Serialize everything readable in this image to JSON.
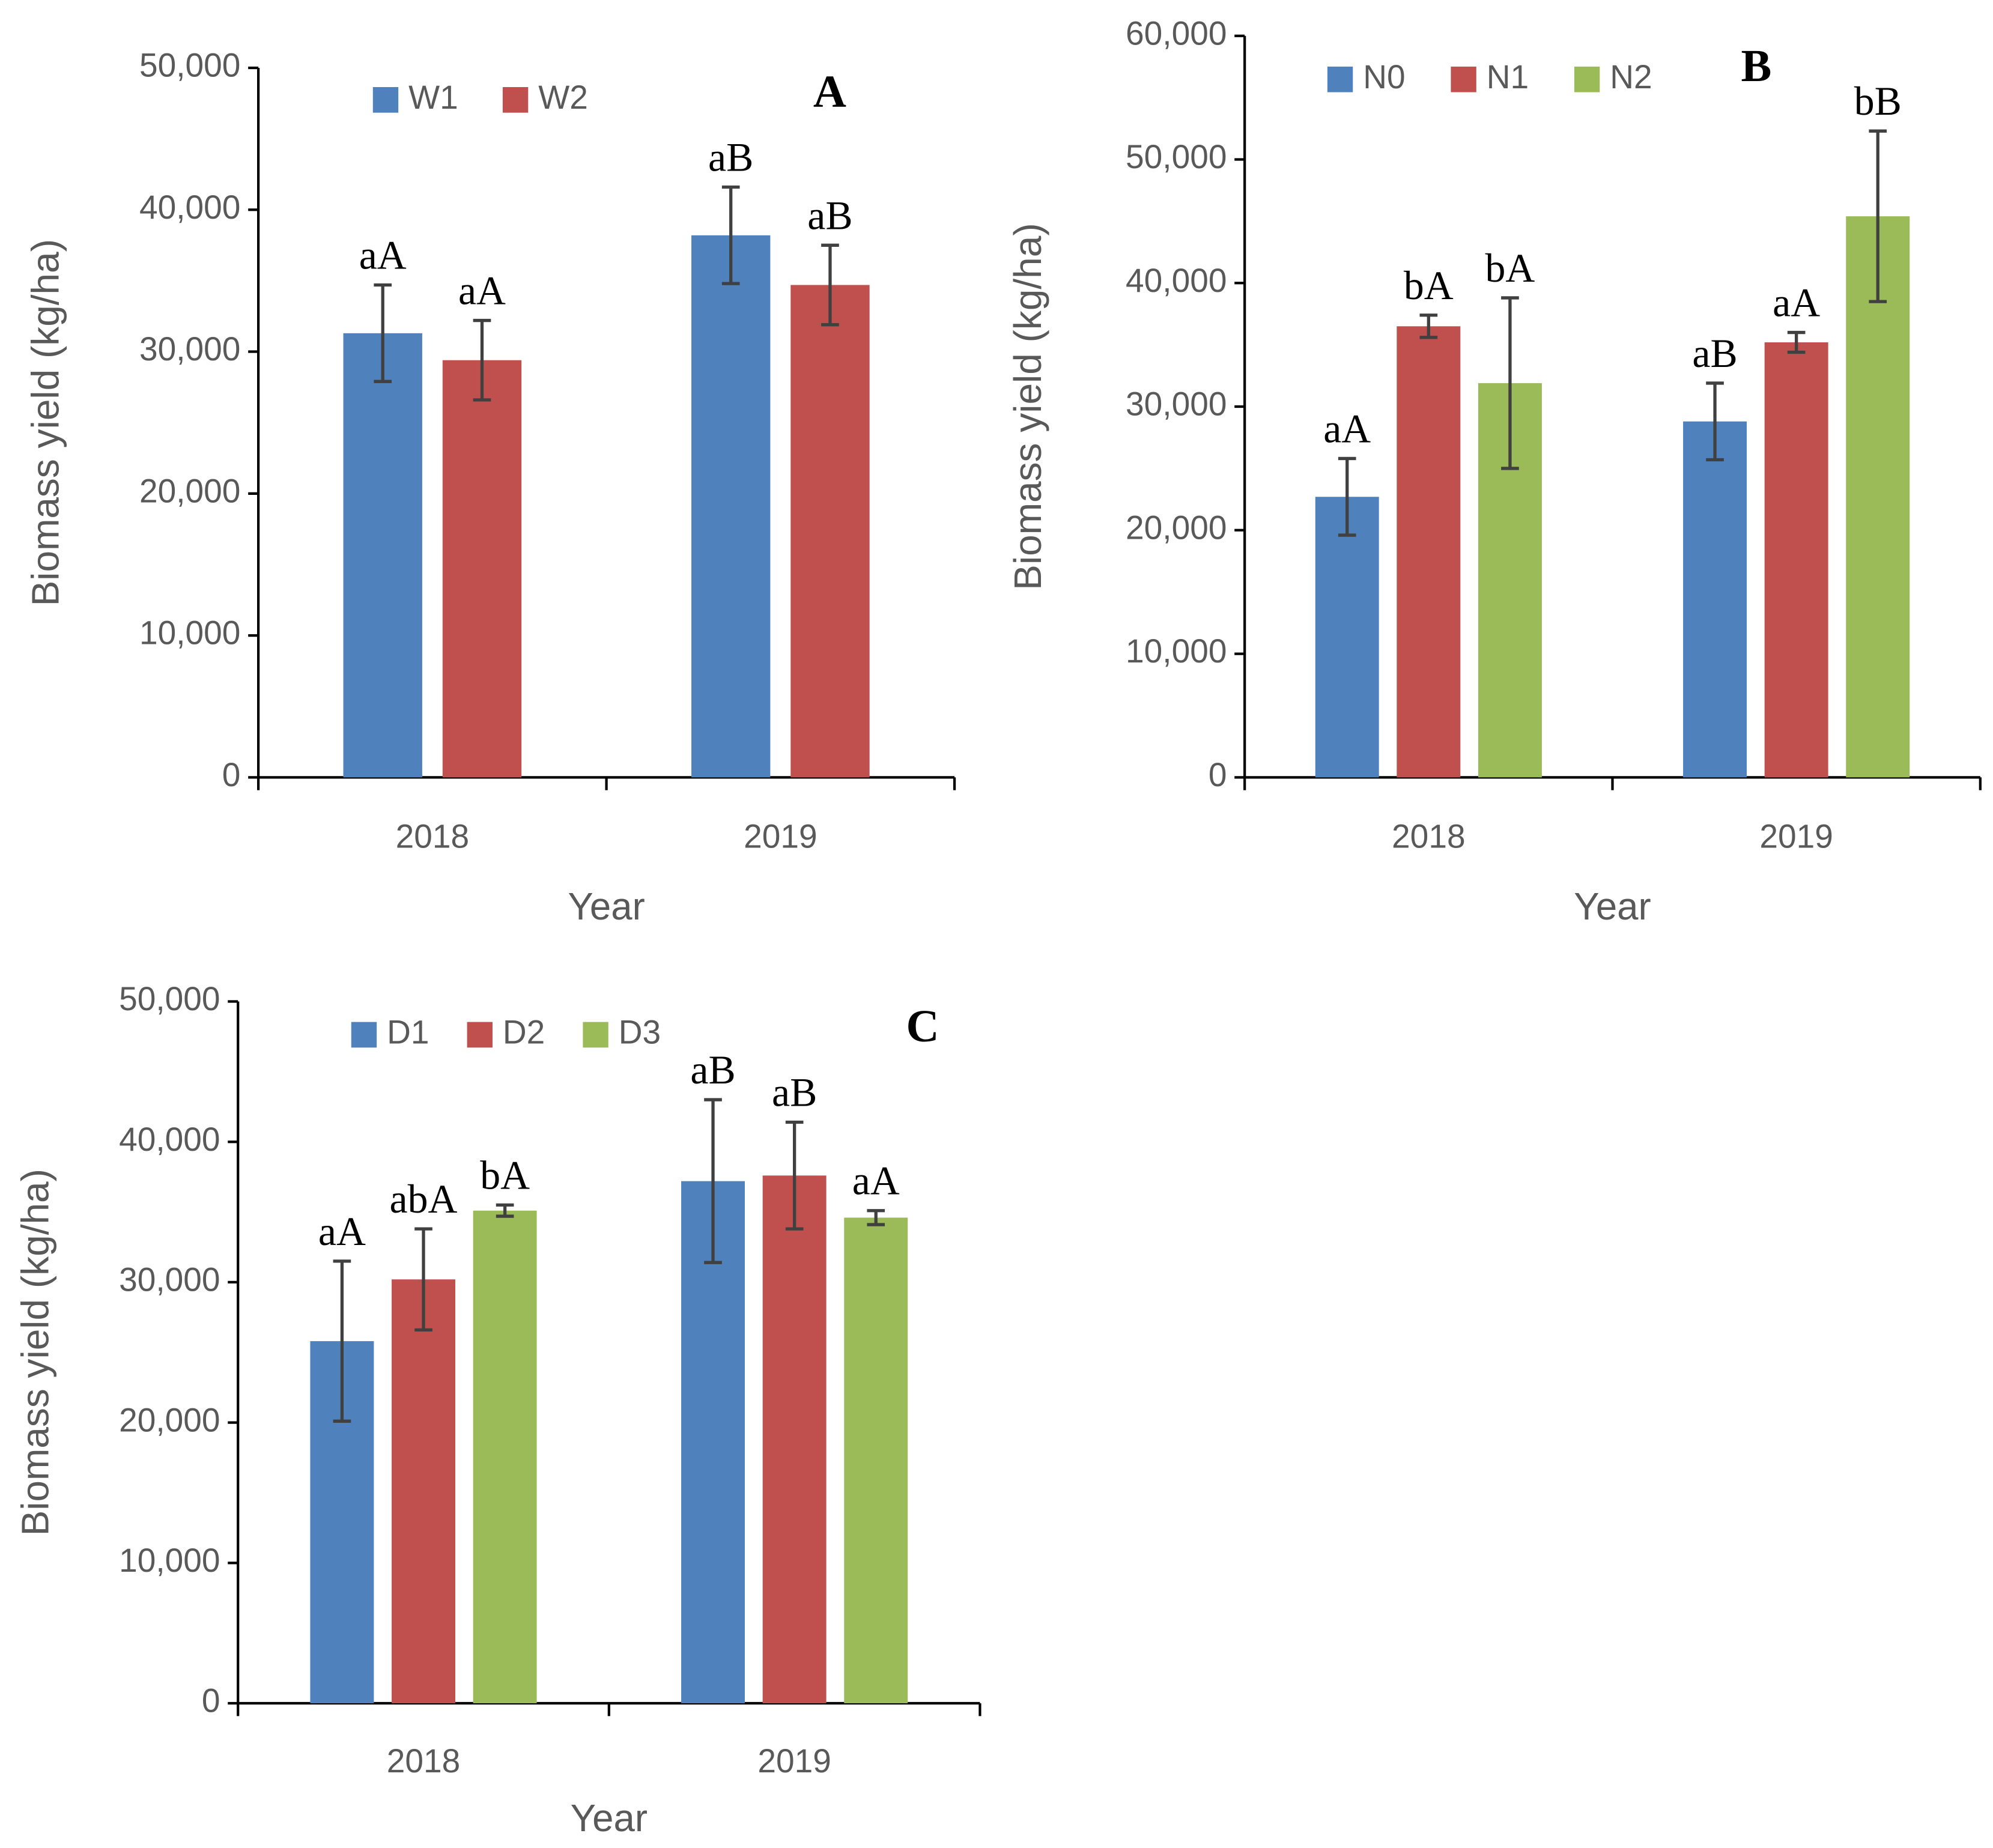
{
  "chart_data": [
    {
      "type": "bar",
      "title": "A",
      "x_label": "Year",
      "y_label": "Biomass yield (kg/ha)",
      "categories": [
        "2018",
        "2019"
      ],
      "series": [
        {
          "name": "W1",
          "color": "#4f81bd",
          "values": [
            31300,
            38200
          ],
          "errors": [
            3400,
            3400
          ],
          "annotations": [
            "aA",
            "aB"
          ]
        },
        {
          "name": "W2",
          "color": "#c0504d",
          "values": [
            29400,
            34700
          ],
          "errors": [
            2800,
            2800
          ],
          "annotations": [
            "aA",
            "aB"
          ]
        }
      ],
      "ylim": [
        0,
        50000
      ],
      "yticks": [
        0,
        {
          "value": 10000,
          "label": "10,000"
        },
        {
          "value": 20000,
          "label": "20,000"
        },
        {
          "value": 30000,
          "label": "30,000"
        },
        {
          "value": 40000,
          "label": "40,000"
        },
        {
          "value": 50000,
          "label": "50,000"
        }
      ]
    },
    {
      "type": "bar",
      "title": "B",
      "x_label": "Year",
      "y_label": "Biomass yield (kg/ha)",
      "categories": [
        "2018",
        "2019"
      ],
      "series": [
        {
          "name": "N0",
          "color": "#4f81bd",
          "values": [
            22700,
            28800
          ],
          "errors": [
            3100,
            3100
          ],
          "annotations": [
            "aA",
            "aB"
          ]
        },
        {
          "name": "N1",
          "color": "#c0504d",
          "values": [
            36500,
            35200
          ],
          "errors": [
            900,
            800
          ],
          "annotations": [
            "bA",
            "aA"
          ]
        },
        {
          "name": "N2",
          "color": "#9bbb59",
          "values": [
            31900,
            45400
          ],
          "errors": [
            6900,
            6900
          ],
          "annotations": [
            "bA",
            "bB"
          ]
        }
      ],
      "ylim": [
        0,
        60000
      ],
      "yticks": [
        0,
        {
          "value": 10000,
          "label": "10,000"
        },
        {
          "value": 20000,
          "label": "20,000"
        },
        {
          "value": 30000,
          "label": "30,000"
        },
        {
          "value": 40000,
          "label": "40,000"
        },
        {
          "value": 50000,
          "label": "50,000"
        },
        {
          "value": 60000,
          "label": "60,000"
        }
      ]
    },
    {
      "type": "bar",
      "title": "C",
      "x_label": "Year",
      "y_label": "Biomass yield (kg/ha)",
      "categories": [
        "2018",
        "2019"
      ],
      "series": [
        {
          "name": "D1",
          "color": "#4f81bd",
          "values": [
            25800,
            37200
          ],
          "errors": [
            5700,
            5800
          ],
          "annotations": [
            "aA",
            "aB"
          ]
        },
        {
          "name": "D2",
          "color": "#c0504d",
          "values": [
            30200,
            37600
          ],
          "errors": [
            3600,
            3800
          ],
          "annotations": [
            "abA",
            "aB"
          ]
        },
        {
          "name": "D3",
          "color": "#9bbb59",
          "values": [
            35100,
            34600
          ],
          "errors": [
            400,
            500
          ],
          "annotations": [
            "bA",
            "aA"
          ]
        }
      ],
      "ylim": [
        0,
        50000
      ],
      "yticks": [
        0,
        {
          "value": 10000,
          "label": "10,000"
        },
        {
          "value": 20000,
          "label": "20,000"
        },
        {
          "value": 30000,
          "label": "30,000"
        },
        {
          "value": 40000,
          "label": "40,000"
        },
        {
          "value": 50000,
          "label": "50,000"
        }
      ]
    }
  ]
}
